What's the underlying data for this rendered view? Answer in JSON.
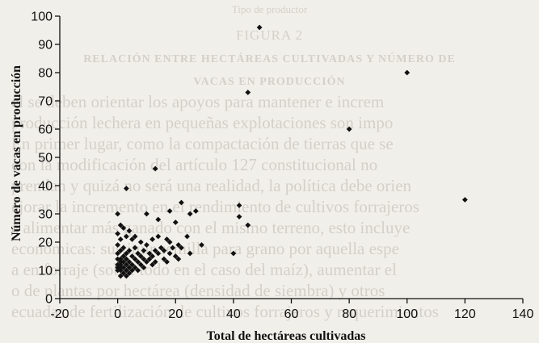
{
  "background_text": {
    "header": "Tipo de productor",
    "figure": "FIGURA 2",
    "caption_1": "RELACIÓN ENTRE HECTÁREAS CULTIVADAS Y NÚMERO DE",
    "caption_2": "VACAS EN PRODUCCIÓN",
    "lines": [
      "el se deben orientar los apoyos para mantener e increm",
      "producción lechera en pequeñas explotaciones son impo",
      "En primer lugar, como la compactación de tierras que se",
      "con la modificación del artículo 127 constitucional no",
      "prendan y quizá no será una realidad, la política debe orien",
      "ejorar la incremento en el rendimiento de cultivos forrajeros",
      "a alimentar más ganado con el mismo terreno, esto incluye",
      "económicas: sustituir semilla para grano por aquella espe",
      "a en forraje (sobre todo en el caso del maíz), aumentar el",
      "o de plantas por hectárea (densidad de siembra) y otros",
      "ecuadas de fertilización de cultivos forrajeros y requerimientos"
    ]
  },
  "chart_data": {
    "type": "scatter",
    "xlabel": "Total de hectáreas cultivadas",
    "ylabel": "Número de vacas en producción",
    "xlim": [
      -20,
      140
    ],
    "ylim": [
      0,
      100
    ],
    "xticks": [
      -20,
      0,
      20,
      40,
      60,
      80,
      100,
      120,
      140
    ],
    "yticks": [
      0,
      10,
      20,
      30,
      40,
      50,
      60,
      70,
      80,
      90,
      100
    ],
    "marker_color": "#111111",
    "points": [
      [
        49,
        96
      ],
      [
        100,
        80
      ],
      [
        45,
        73
      ],
      [
        80,
        60
      ],
      [
        13,
        46
      ],
      [
        3,
        39
      ],
      [
        120,
        35
      ],
      [
        42,
        33
      ],
      [
        22,
        34
      ],
      [
        25,
        30
      ],
      [
        18,
        31
      ],
      [
        42,
        29
      ],
      [
        27,
        31
      ],
      [
        0,
        30
      ],
      [
        10,
        30
      ],
      [
        14,
        28
      ],
      [
        20,
        27
      ],
      [
        45,
        26
      ],
      [
        1,
        26
      ],
      [
        2,
        25
      ],
      [
        4,
        24
      ],
      [
        0,
        23
      ],
      [
        3,
        22
      ],
      [
        6,
        22
      ],
      [
        14,
        22
      ],
      [
        24,
        22
      ],
      [
        1,
        21
      ],
      [
        5,
        21
      ],
      [
        12,
        21
      ],
      [
        18,
        20
      ],
      [
        17,
        21
      ],
      [
        8,
        20
      ],
      [
        10,
        19
      ],
      [
        21,
        19
      ],
      [
        29,
        19
      ],
      [
        0,
        19
      ],
      [
        15,
        18
      ],
      [
        19,
        18
      ],
      [
        22,
        18
      ],
      [
        2,
        18
      ],
      [
        6,
        18
      ],
      [
        4,
        17
      ],
      [
        9,
        17
      ],
      [
        13,
        17
      ],
      [
        16,
        17
      ],
      [
        1,
        17
      ],
      [
        0,
        16
      ],
      [
        3,
        16
      ],
      [
        7,
        16
      ],
      [
        11,
        16
      ],
      [
        14,
        16
      ],
      [
        18,
        16
      ],
      [
        25,
        16
      ],
      [
        40,
        16
      ],
      [
        5,
        15
      ],
      [
        8,
        15
      ],
      [
        12,
        15
      ],
      [
        20,
        15
      ],
      [
        2,
        15
      ],
      [
        0,
        14
      ],
      [
        1,
        14
      ],
      [
        3,
        14
      ],
      [
        6,
        14
      ],
      [
        9,
        14
      ],
      [
        11,
        14
      ],
      [
        16,
        14
      ],
      [
        21,
        14
      ],
      [
        1,
        13
      ],
      [
        2,
        13
      ],
      [
        4,
        13
      ],
      [
        7,
        13
      ],
      [
        10,
        13
      ],
      [
        13,
        13
      ],
      [
        17,
        13
      ],
      [
        0,
        12
      ],
      [
        1,
        12
      ],
      [
        3,
        12
      ],
      [
        5,
        12
      ],
      [
        8,
        12
      ],
      [
        12,
        12
      ],
      [
        0,
        11
      ],
      [
        1,
        11
      ],
      [
        2,
        11
      ],
      [
        4,
        11
      ],
      [
        6,
        11
      ],
      [
        9,
        11
      ],
      [
        0,
        10
      ],
      [
        1,
        10
      ],
      [
        3,
        10
      ],
      [
        5,
        10
      ],
      [
        7,
        10
      ],
      [
        2,
        9
      ],
      [
        4,
        9
      ],
      [
        1,
        8
      ],
      [
        3,
        8
      ]
    ]
  }
}
